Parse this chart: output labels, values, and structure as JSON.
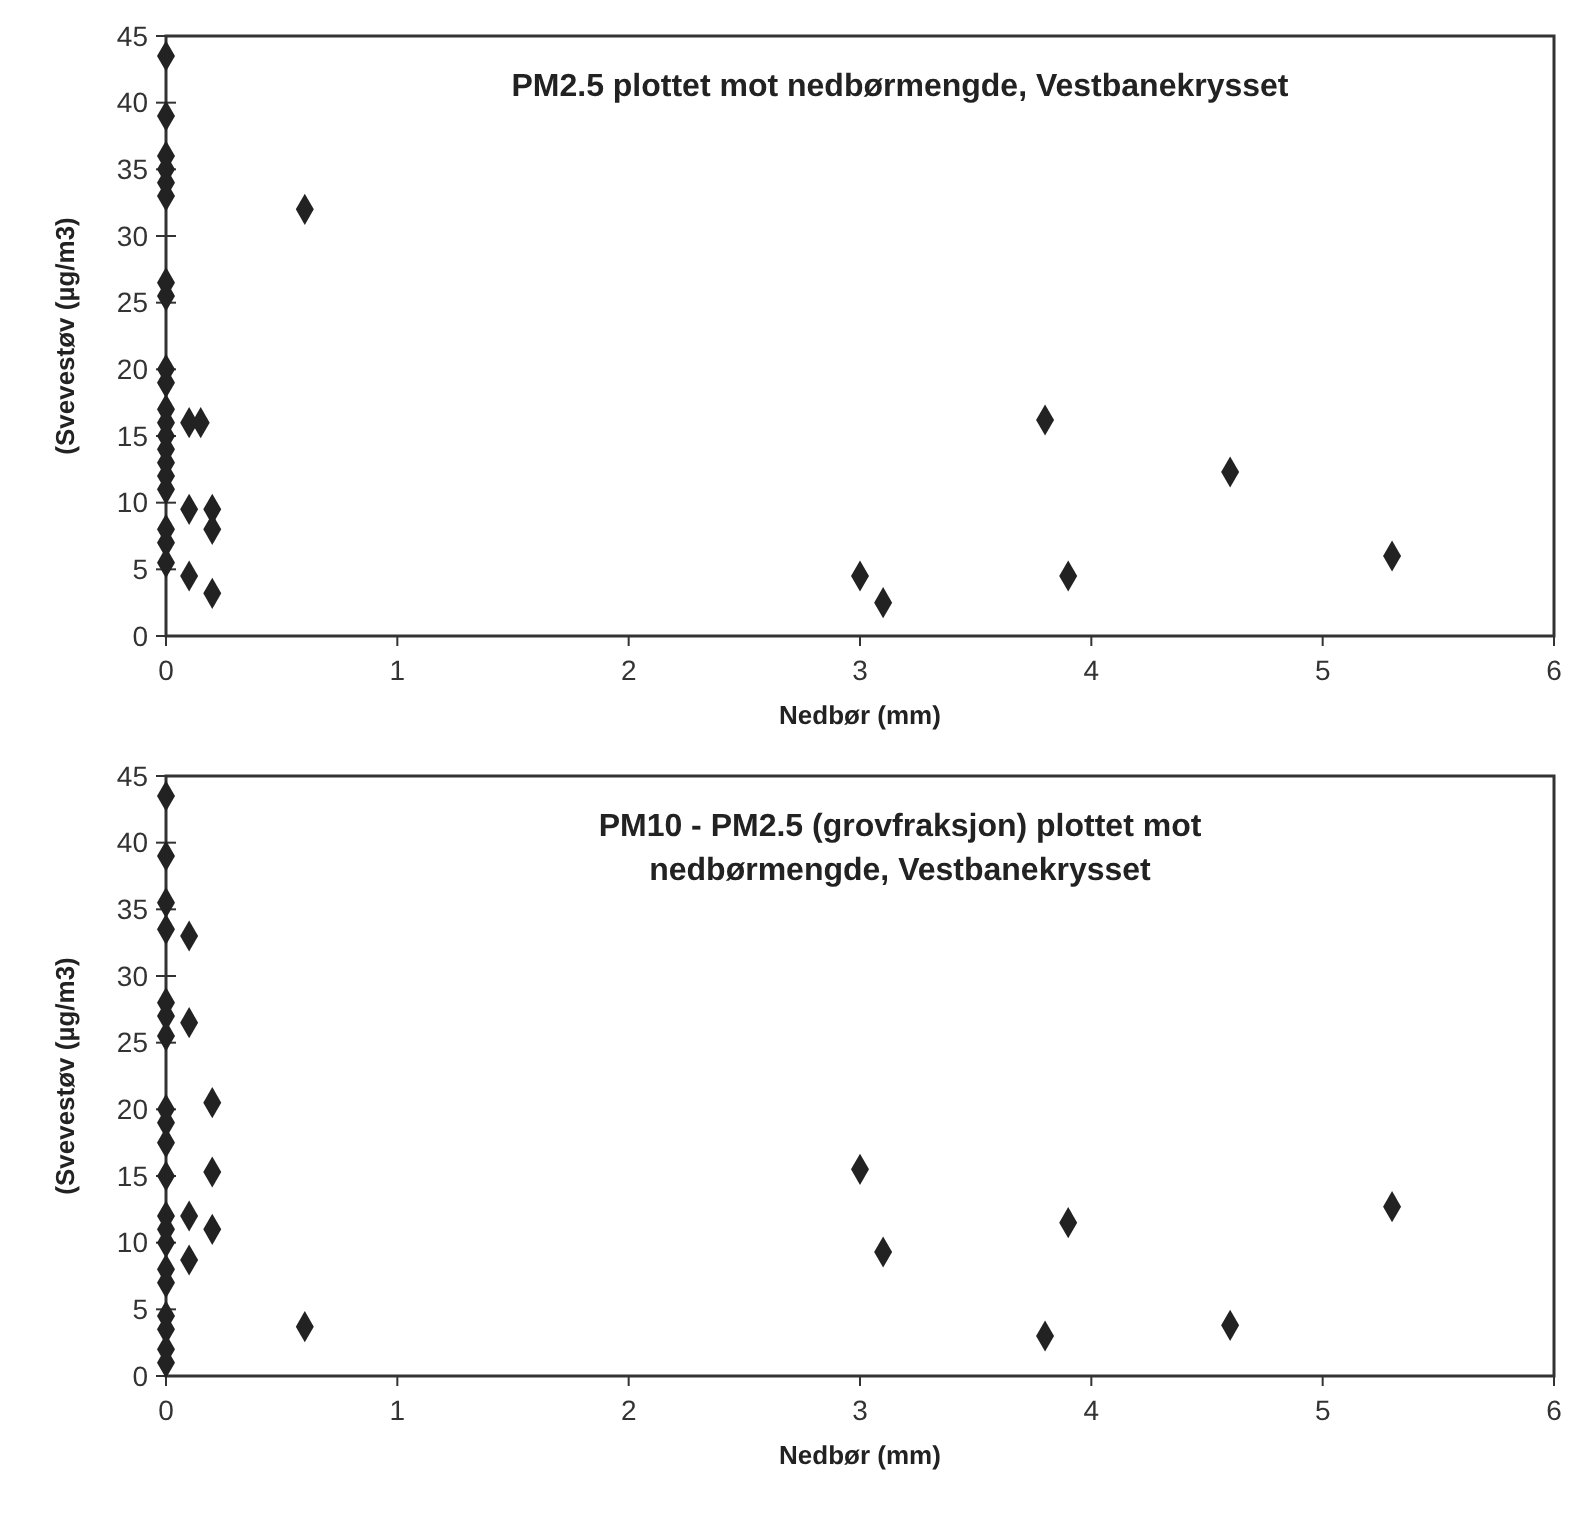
{
  "chart_data": [
    {
      "type": "scatter",
      "title": "PM2.5 plottet mot nedbørmengde, Vestbanekrysset",
      "xlabel": "Nedbør (mm)",
      "ylabel": "(Svevestøv (µg/m3)",
      "x": [
        0,
        0,
        0,
        0,
        0,
        0,
        0,
        0,
        0,
        0,
        0,
        0,
        0,
        0,
        0,
        0,
        0,
        0,
        0,
        0,
        0.1,
        0.1,
        0.15,
        0.1,
        0.2,
        0.2,
        0.2,
        0.6,
        3.0,
        3.1,
        3.8,
        3.9,
        4.6,
        5.3
      ],
      "values": [
        43.5,
        39,
        36,
        35,
        34,
        33,
        26.5,
        25.5,
        20,
        19,
        17,
        16,
        15,
        14,
        13,
        12,
        11,
        8,
        7,
        5.5,
        16,
        4.5,
        16,
        9.5,
        9.5,
        8,
        3.2,
        32,
        4.5,
        2.5,
        16.2,
        4.5,
        12.3,
        6
      ],
      "color": "#222222",
      "marker": "diamond",
      "xlim": [
        0,
        6
      ],
      "xticks": [
        0,
        1,
        2,
        3,
        4,
        5,
        6
      ],
      "ylim": [
        0,
        45
      ],
      "yticks": [
        0,
        5,
        10,
        15,
        20,
        25,
        30,
        35,
        40,
        45
      ]
    },
    {
      "type": "scatter",
      "title": "PM10 - PM2.5 (grovfraksjon) plottet mot nedbørmengde, Vestbanekrysset",
      "xlabel": "Nedbør (mm)",
      "ylabel": "(Svevestøv (µg/m3)",
      "x": [
        0,
        0,
        0,
        0,
        0,
        0,
        0,
        0,
        0,
        0,
        0,
        0,
        0,
        0,
        0,
        0,
        0,
        0,
        0,
        0,
        0.1,
        0.1,
        0.1,
        0.1,
        0.2,
        0.2,
        0.2,
        0.6,
        3.0,
        3.1,
        3.8,
        3.9,
        4.6,
        5.3
      ],
      "values": [
        43.5,
        39,
        35.5,
        33.5,
        28,
        27,
        25.5,
        20,
        19,
        17.5,
        15,
        12,
        11,
        10,
        8,
        7,
        4.5,
        3.5,
        2,
        1,
        33,
        26.5,
        12,
        8.7,
        20.5,
        15.3,
        11,
        3.7,
        15.5,
        9.3,
        3,
        11.5,
        3.8,
        12.7
      ],
      "color": "#222222",
      "marker": "diamond",
      "xlim": [
        0,
        6
      ],
      "xticks": [
        0,
        1,
        2,
        3,
        4,
        5,
        6
      ],
      "ylim": [
        0,
        45
      ],
      "yticks": [
        0,
        5,
        10,
        15,
        20,
        25,
        30,
        35,
        40,
        45
      ]
    }
  ]
}
